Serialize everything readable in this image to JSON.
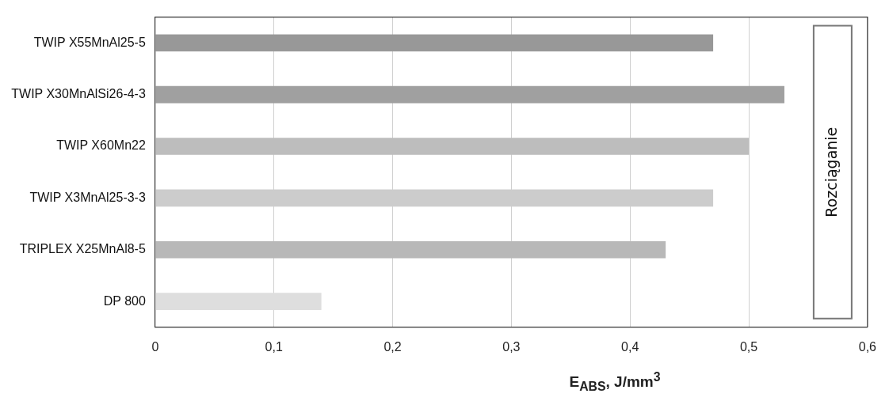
{
  "chart_data": {
    "type": "bar",
    "orientation": "horizontal",
    "xlabel": "E$_{ABS}$,  J/mm$^{3}$",
    "categories": [
      "TWIP X55MnAl25-5",
      "TWIP X30MnAlSi26-4-3",
      "TWIP X60Mn22",
      "TWIP X3MnAl25-3-3",
      "TRIPLEX X25MnAl8-5",
      "DP 800"
    ],
    "values": [
      0.47,
      0.53,
      0.5,
      0.47,
      0.43,
      0.14
    ],
    "colors": [
      "#989898",
      "#a0a0a0",
      "#bdbdbd",
      "#cccccc",
      "#b8b8b8",
      "#dedede"
    ],
    "xlim": [
      0,
      0.6
    ],
    "xticks": [
      0,
      {
        "value": 0.1,
        "label": "0,1"
      },
      {
        "value": 0.2,
        "label": "0,2"
      },
      {
        "value": 0.3,
        "label": "0,3"
      },
      {
        "value": 0.4,
        "label": "0,4"
      },
      {
        "value": 0.5,
        "label": "0,5"
      },
      {
        "value": 0.6,
        "label": "0,6"
      }
    ],
    "grid": "x",
    "annotations": [
      "Rozciąganie"
    ]
  }
}
